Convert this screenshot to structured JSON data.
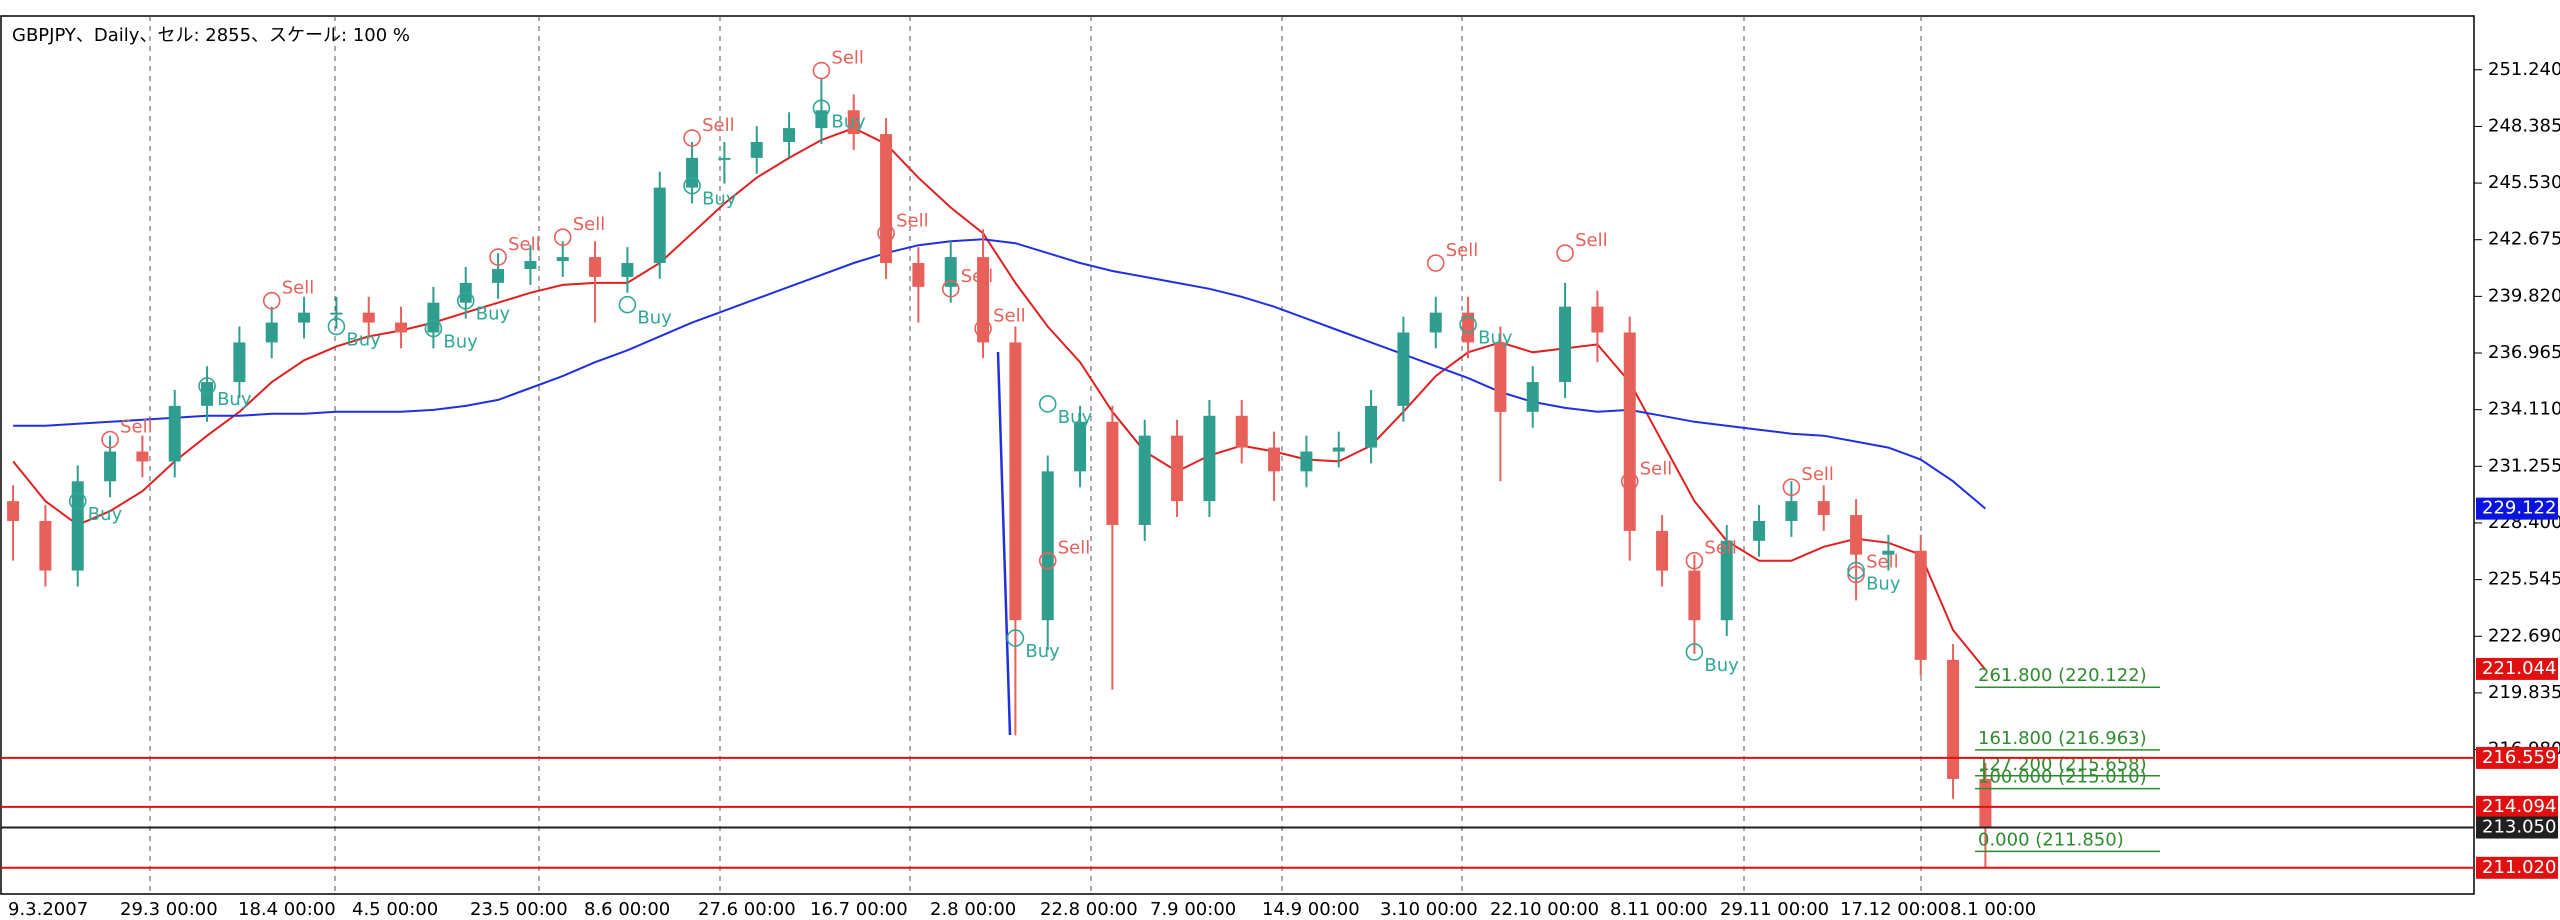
{
  "chart_data": {
    "type": "candlestick",
    "title": "GBPJPY、Daily、セル: 2855、スケール: 100 %",
    "categories": [
      null,
      null,
      null,
      null,
      null,
      null,
      null,
      null,
      null,
      null,
      null,
      null,
      null,
      null,
      null,
      null,
      null,
      null,
      null,
      null,
      null,
      null,
      null,
      null,
      null,
      null,
      null,
      null,
      null,
      null,
      null,
      null,
      null,
      null,
      null,
      null,
      null,
      null,
      null,
      null,
      null,
      null,
      null,
      null,
      null,
      null,
      null,
      null,
      null,
      null,
      null,
      null,
      null,
      null,
      null,
      null,
      null,
      null,
      null,
      null,
      null,
      null
    ],
    "open": [
      229.5,
      228.5,
      226,
      230.5,
      232,
      231.5,
      234.3,
      235.5,
      237.5,
      238.5,
      239,
      239,
      238.5,
      238,
      239.5,
      240.5,
      241.2,
      241.6,
      241.8,
      240.8,
      241.5,
      245.3,
      246.8,
      246.8,
      247.6,
      248.3,
      249.2,
      248,
      241.5,
      240.3,
      241.8,
      237.5,
      223.5,
      231,
      233.5,
      228.3,
      232.8,
      229.5,
      233.8,
      232.2,
      231,
      232,
      232.2,
      234.3,
      238,
      239,
      237.5,
      234,
      235.5,
      239.3,
      238,
      228,
      226,
      223.5,
      227.5,
      228.5,
      229.5,
      228.8,
      226.8,
      227,
      221.5,
      215.5
    ],
    "high": [
      230.3,
      229.3,
      231.3,
      232.8,
      232.8,
      235.1,
      236.3,
      238.3,
      239.3,
      239.8,
      239.8,
      239.8,
      239.3,
      240.3,
      241.3,
      242,
      242.4,
      242.6,
      242.6,
      242.3,
      246.1,
      247.6,
      247.6,
      248.4,
      249.1,
      250.8,
      250,
      248.8,
      242.3,
      242.6,
      243.2,
      238.3,
      231.8,
      234.3,
      234.3,
      233.6,
      233.6,
      234.6,
      234.6,
      233,
      232.8,
      233,
      235.1,
      238.8,
      239.8,
      239.8,
      238.3,
      236.3,
      240.5,
      240.1,
      238.8,
      228.8,
      226.8,
      228.3,
      229.3,
      230.5,
      230.3,
      229.6,
      227.8,
      227.8,
      222.3,
      216.3
    ],
    "low": [
      226.5,
      225.2,
      225.2,
      229.7,
      230.7,
      230.7,
      233.5,
      234.7,
      236.7,
      237.7,
      238.2,
      237.7,
      237.2,
      237.2,
      238.7,
      239.7,
      240.4,
      240.8,
      238.5,
      240,
      240.7,
      244.5,
      245.5,
      246,
      246.8,
      247.5,
      247.2,
      240.7,
      238.5,
      239.5,
      236.7,
      217.7,
      222,
      230.2,
      220,
      227.5,
      228.7,
      228.7,
      231.4,
      229.5,
      230.2,
      231.2,
      231.4,
      233.5,
      237.2,
      236.7,
      230.5,
      233.2,
      234.7,
      236.5,
      226.5,
      225.2,
      221.8,
      222.7,
      226.7,
      227.7,
      228,
      224.5,
      226,
      220.7,
      214.5,
      211.02
    ],
    "close": [
      228.5,
      226,
      230.5,
      232,
      231.5,
      234.3,
      235.5,
      237.5,
      238.5,
      239,
      239,
      238.5,
      238,
      239.5,
      240.5,
      241.2,
      241.6,
      241.8,
      240.8,
      241.5,
      245.3,
      246.8,
      246.8,
      247.6,
      248.3,
      249.2,
      248,
      241.5,
      240.3,
      241.8,
      237.5,
      223.5,
      231,
      233.5,
      228.3,
      232.8,
      229.5,
      233.8,
      232.2,
      231,
      232,
      232.2,
      234.3,
      238,
      239,
      237.5,
      234,
      235.5,
      239.3,
      238,
      228,
      226,
      223.5,
      227.5,
      228.5,
      229.5,
      228.8,
      226.8,
      227,
      221.5,
      215.5,
      213.05
    ],
    "up_color": "#2f9e8f",
    "down_color": "#e8605a",
    "ylim": [
      209.7,
      253.95
    ],
    "yticks": [
      {
        "value": 251.24,
        "label": "251.240"
      },
      248.385,
      {
        "value": 245.53,
        "label": "245.530"
      },
      242.675,
      {
        "value": 239.82,
        "label": "239.820"
      },
      236.965,
      {
        "value": 234.11,
        "label": "234.110"
      },
      {
        "value": 231.255,
        "label": "231.255"
      },
      {
        "value": 228.4,
        "label": "228.400"
      },
      225.545,
      {
        "value": 222.69,
        "label": "222.690"
      },
      219.835,
      {
        "value": 216.98,
        "label": "216.980"
      }
    ],
    "lines": [
      {
        "color": "#e02020",
        "values": [
          231.5,
          229.5,
          228.3,
          229,
          230,
          231.5,
          232.8,
          234,
          235.5,
          236.6,
          237.3,
          237.8,
          238.1,
          238.5,
          239,
          239.5,
          240,
          240.4,
          240.5,
          240.5,
          241.5,
          243,
          244.5,
          245.8,
          246.8,
          247.7,
          248.3,
          247.5,
          245.8,
          244.3,
          243,
          240.5,
          238.3,
          236.5,
          234,
          232,
          231,
          231.8,
          232.3,
          232,
          231.6,
          231.5,
          232.3,
          234,
          235.8,
          237,
          237.5,
          237,
          237.2,
          237.4,
          235.5,
          232.5,
          229.5,
          227.5,
          226.5,
          226.5,
          227.2,
          227.6,
          227.4,
          226.8,
          223,
          221
        ]
      },
      {
        "color": "#2030e0",
        "values": [
          233.3,
          233.3,
          233.4,
          233.5,
          233.6,
          233.7,
          233.8,
          233.8,
          233.9,
          233.9,
          234,
          234,
          234,
          234.1,
          234.3,
          234.6,
          235.2,
          235.8,
          236.5,
          237.1,
          237.8,
          238.5,
          239.1,
          239.7,
          240.3,
          240.9,
          241.5,
          242,
          242.4,
          242.6,
          242.7,
          242.5,
          242,
          241.5,
          241.1,
          240.8,
          240.5,
          240.2,
          239.8,
          239.3,
          238.7,
          238.1,
          237.5,
          236.9,
          236.3,
          235.7,
          235,
          234.5,
          234.2,
          234,
          234.1,
          233.8,
          233.5,
          233.3,
          233.1,
          232.9,
          232.8,
          232.5,
          232.2,
          231.6,
          230.5,
          229.122
        ]
      }
    ],
    "signals": [
      {
        "name": "Sell",
        "color": "#e8605a",
        "values": [
          null,
          null,
          null,
          232.6,
          null,
          null,
          null,
          null,
          239.6,
          null,
          null,
          null,
          null,
          null,
          null,
          241.8,
          null,
          242.8,
          null,
          null,
          null,
          247.8,
          null,
          null,
          null,
          251.2,
          null,
          243,
          null,
          240.2,
          238.2,
          null,
          226.5,
          null,
          null,
          null,
          null,
          null,
          null,
          null,
          null,
          null,
          null,
          null,
          241.5,
          null,
          null,
          null,
          242,
          null,
          230.5,
          null,
          226.5,
          null,
          null,
          230.2,
          null,
          225.8,
          null,
          null,
          null,
          null
        ]
      },
      {
        "name": "Buy",
        "color": "#2fa898",
        "values": [
          null,
          null,
          229.5,
          null,
          null,
          null,
          235.3,
          null,
          null,
          null,
          238.3,
          null,
          null,
          238.2,
          239.6,
          null,
          null,
          null,
          null,
          239.4,
          null,
          245.4,
          null,
          null,
          null,
          249.3,
          null,
          null,
          null,
          null,
          null,
          222.6,
          234.4,
          null,
          null,
          null,
          null,
          null,
          null,
          null,
          null,
          null,
          null,
          null,
          null,
          238.4,
          null,
          null,
          null,
          null,
          null,
          null,
          221.9,
          null,
          null,
          null,
          null,
          226,
          null,
          null,
          null,
          null
        ]
      }
    ],
    "price_lines": {
      "values": [
        229.122,
        221.044,
        216.559,
        214.094,
        213.05,
        211.02
      ],
      "value_labels": [
        "229.122",
        "221.044",
        "216.559",
        "214.094",
        "213.050",
        "211.020"
      ],
      "colors": [
        "#0a14e0",
        "#e01010",
        "#e01010",
        "#e01010",
        "#202020",
        "#e01010"
      ],
      "show_line": [
        false,
        false,
        true,
        true,
        true,
        true
      ]
    },
    "fib": {
      "color": "#2e8b2e",
      "values": [
        220.122,
        216.963,
        215.658,
        215.01,
        211.85
      ],
      "value_labels": [
        "261.800 (220.122)",
        "161.800 (216.963)",
        "127.200 (215.658)",
        "100.000 (215.010)",
        "0.000 (211.850)"
      ]
    },
    "xlabels": [
      "9.3.2007",
      "29.3 00:00",
      "18.4 00:00",
      "4.5 00:00",
      "23.5 00:00",
      "8.6 00:00",
      "27.6 00:00",
      "16.7 00:00",
      "2.8 00:00",
      "22.8 00:00",
      "7.9 00:00",
      "14.9 00:00",
      "3.10 00:00",
      "22.10 00:00",
      "8.11 00:00",
      "29.11 00:00",
      "17.12 00:00",
      "8.1 00:00"
    ]
  }
}
